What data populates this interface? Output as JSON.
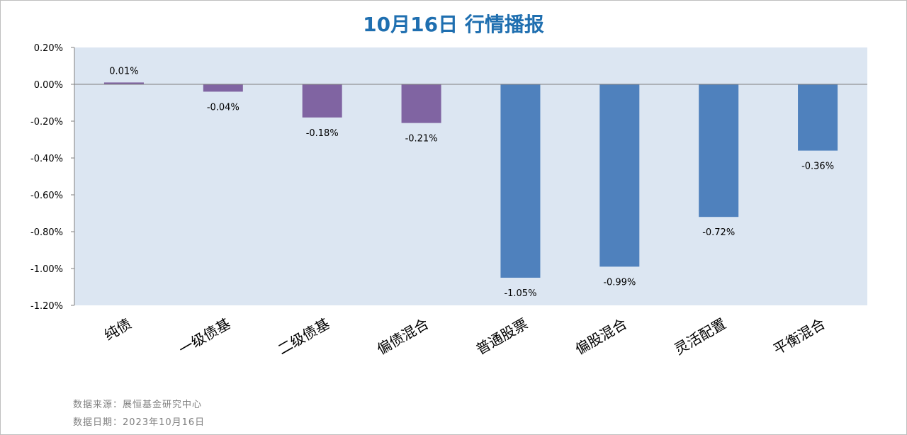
{
  "chart_data": {
    "type": "bar",
    "title": "10月16日  行情播报",
    "categories": [
      "纯债",
      "一级债基",
      "二级债基",
      "偏债混合",
      "普通股票",
      "偏股混合",
      "灵活配置",
      "平衡混合"
    ],
    "values": [
      0.01,
      -0.04,
      -0.18,
      -0.21,
      -1.05,
      -0.99,
      -0.72,
      -0.36
    ],
    "data_labels": [
      "0.01%",
      "-0.04%",
      "-0.18%",
      "-0.21%",
      "-1.05%",
      "-0.99%",
      "-0.72%",
      "-0.36%"
    ],
    "ylim": [
      -1.2,
      0.2
    ],
    "yticks": [
      0.2,
      0.0,
      -0.2,
      -0.4,
      -0.6,
      -0.8,
      -1.0,
      -1.2
    ],
    "ytick_labels": [
      "0.20%",
      "0.00%",
      "-0.20%",
      "-0.40%",
      "-0.60%",
      "-0.80%",
      "-1.00%",
      "-1.20%"
    ],
    "grid": false,
    "legend": "none",
    "colors": {
      "plot_background": "#dce6f2",
      "bond_bars": "#8064a2",
      "equity_bars": "#4f81bd",
      "title": "#1f6fb0"
    },
    "bar_color_keys": [
      "bond_bars",
      "bond_bars",
      "bond_bars",
      "bond_bars",
      "equity_bars",
      "equity_bars",
      "equity_bars",
      "equity_bars"
    ]
  },
  "footer": {
    "source": "数据来源：展恒基金研究中心",
    "date": "数据日期：2023年10月16日"
  }
}
